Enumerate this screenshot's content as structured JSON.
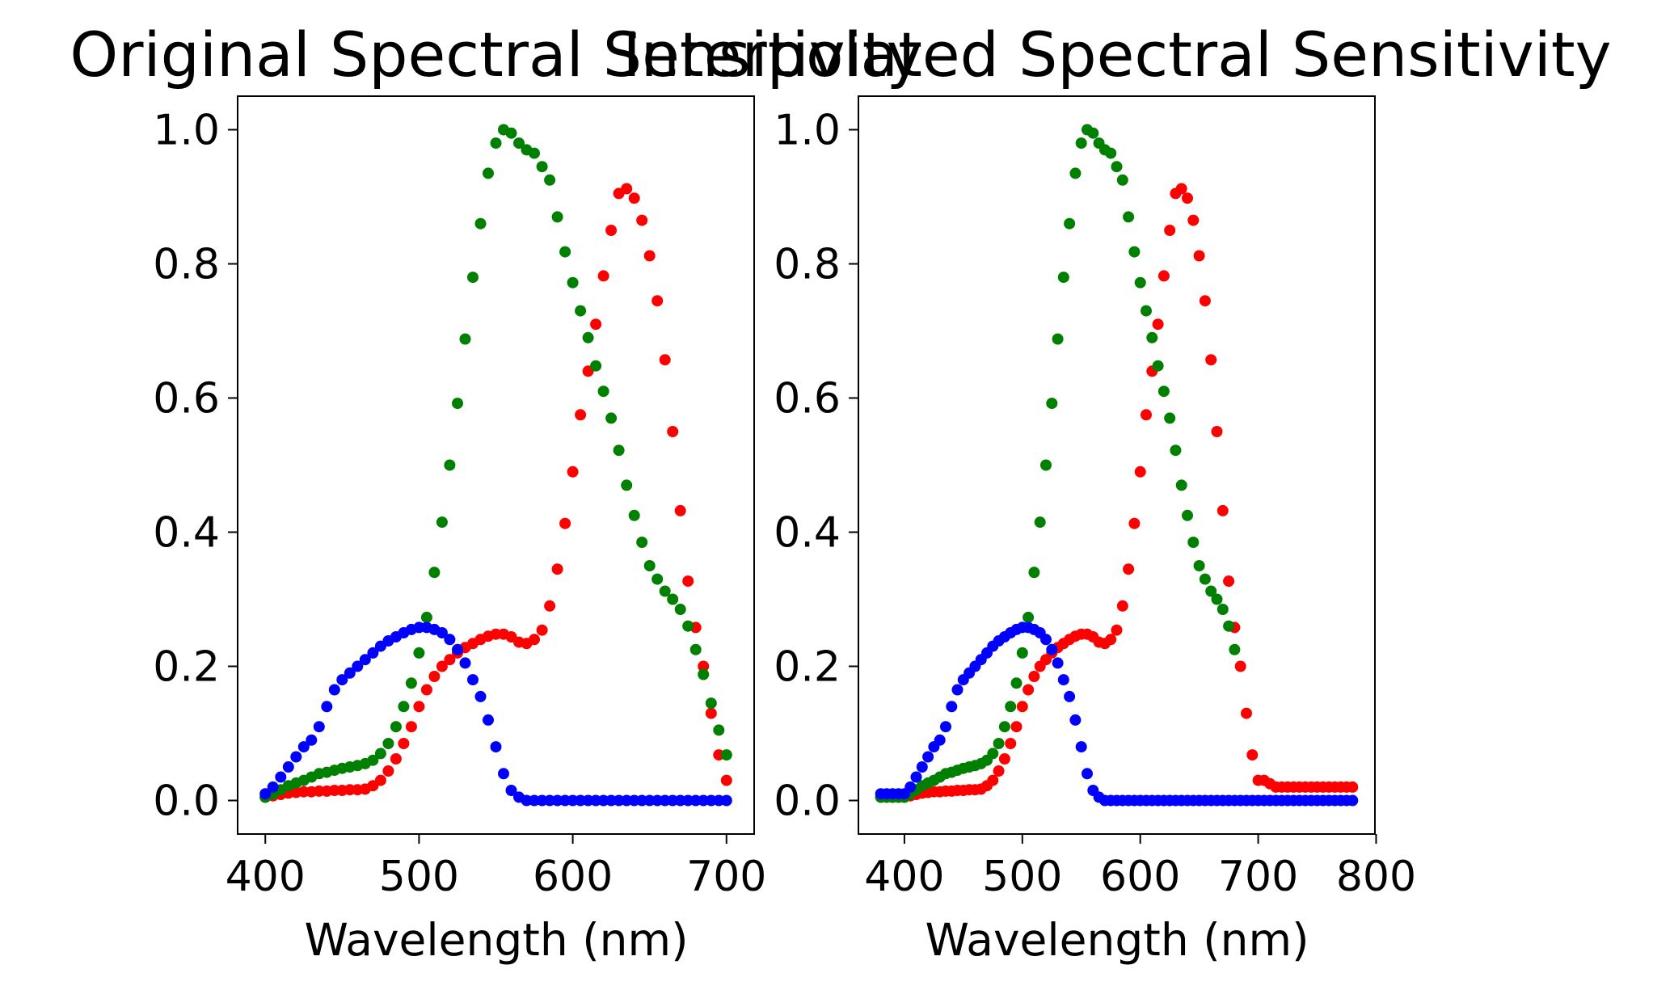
{
  "chart_data": [
    {
      "type": "scatter",
      "title": "Original Spectral Sensitivity",
      "xlabel": "Wavelength (nm)",
      "ylabel": "",
      "xlim": [
        382,
        718
      ],
      "ylim": [
        -0.05,
        1.05
      ],
      "xticks": [
        "400",
        "500",
        "600",
        "700"
      ],
      "yticks": [
        "0.0",
        "0.2",
        "0.4",
        "0.6",
        "0.8",
        "1.0"
      ],
      "grid": false,
      "series": [
        {
          "color": "#ff0000",
          "x": [
            400,
            405,
            410,
            415,
            420,
            425,
            430,
            435,
            440,
            445,
            450,
            455,
            460,
            465,
            470,
            475,
            480,
            485,
            490,
            495,
            500,
            505,
            510,
            515,
            520,
            525,
            530,
            535,
            540,
            545,
            550,
            555,
            560,
            565,
            570,
            575,
            580,
            585,
            590,
            595,
            600,
            605,
            610,
            615,
            620,
            625,
            630,
            635,
            640,
            645,
            650,
            655,
            660,
            665,
            670,
            675,
            680,
            685,
            690,
            695,
            700
          ],
          "y": [
            0.005,
            0.007,
            0.009,
            0.011,
            0.012,
            0.013,
            0.013,
            0.014,
            0.014,
            0.015,
            0.015,
            0.016,
            0.016,
            0.017,
            0.022,
            0.03,
            0.044,
            0.062,
            0.085,
            0.11,
            0.14,
            0.165,
            0.185,
            0.2,
            0.21,
            0.22,
            0.228,
            0.234,
            0.24,
            0.245,
            0.248,
            0.248,
            0.244,
            0.236,
            0.234,
            0.24,
            0.254,
            0.29,
            0.345,
            0.413,
            0.49,
            0.575,
            0.64,
            0.71,
            0.782,
            0.85,
            0.905,
            0.912,
            0.898,
            0.865,
            0.812,
            0.745,
            0.657,
            0.55,
            0.432,
            0.327,
            0.258,
            0.2,
            0.13,
            0.068,
            0.03
          ]
        },
        {
          "color": "#008000",
          "x": [
            400,
            405,
            410,
            415,
            420,
            425,
            430,
            435,
            440,
            445,
            450,
            455,
            460,
            465,
            470,
            475,
            480,
            485,
            490,
            495,
            500,
            505,
            510,
            515,
            520,
            525,
            530,
            535,
            540,
            545,
            550,
            555,
            560,
            565,
            570,
            575,
            580,
            585,
            590,
            595,
            600,
            605,
            610,
            615,
            620,
            625,
            630,
            635,
            640,
            645,
            650,
            655,
            660,
            665,
            670,
            675,
            680,
            685,
            690,
            695,
            700
          ],
          "y": [
            0.005,
            0.01,
            0.016,
            0.022,
            0.026,
            0.03,
            0.035,
            0.04,
            0.042,
            0.045,
            0.048,
            0.05,
            0.052,
            0.055,
            0.06,
            0.07,
            0.085,
            0.11,
            0.14,
            0.175,
            0.22,
            0.273,
            0.34,
            0.415,
            0.5,
            0.592,
            0.688,
            0.78,
            0.86,
            0.935,
            0.98,
            1.0,
            0.995,
            0.98,
            0.97,
            0.965,
            0.945,
            0.925,
            0.87,
            0.818,
            0.772,
            0.73,
            0.69,
            0.648,
            0.61,
            0.57,
            0.522,
            0.47,
            0.425,
            0.385,
            0.35,
            0.33,
            0.312,
            0.3,
            0.285,
            0.26,
            0.225,
            0.188,
            0.145,
            0.105,
            0.068
          ]
        },
        {
          "color": "#0000ff",
          "x": [
            400,
            405,
            410,
            415,
            420,
            425,
            430,
            435,
            440,
            445,
            450,
            455,
            460,
            465,
            470,
            475,
            480,
            485,
            490,
            495,
            500,
            505,
            510,
            515,
            520,
            525,
            530,
            535,
            540,
            545,
            550,
            555,
            560,
            565,
            570,
            575,
            580,
            585,
            590,
            595,
            600,
            605,
            610,
            615,
            620,
            625,
            630,
            635,
            640,
            645,
            650,
            655,
            660,
            665,
            670,
            675,
            680,
            685,
            690,
            695,
            700
          ],
          "y": [
            0.01,
            0.02,
            0.035,
            0.05,
            0.065,
            0.08,
            0.09,
            0.11,
            0.14,
            0.165,
            0.18,
            0.19,
            0.2,
            0.21,
            0.22,
            0.23,
            0.238,
            0.244,
            0.25,
            0.255,
            0.258,
            0.258,
            0.255,
            0.25,
            0.24,
            0.225,
            0.205,
            0.18,
            0.155,
            0.12,
            0.08,
            0.04,
            0.015,
            0.005,
            0,
            0,
            0,
            0,
            0,
            0,
            0,
            0,
            0,
            0,
            0,
            0,
            0,
            0,
            0,
            0,
            0,
            0,
            0,
            0,
            0,
            0,
            0,
            0,
            0,
            0,
            0
          ]
        }
      ]
    },
    {
      "type": "scatter",
      "title": "Interpolated Spectral Sensitivity",
      "xlabel": "Wavelength (nm)",
      "ylabel": "",
      "xlim": [
        361,
        799
      ],
      "ylim": [
        -0.05,
        1.05
      ],
      "xticks": [
        "400",
        "500",
        "600",
        "700",
        "800"
      ],
      "yticks": [
        "0.0",
        "0.2",
        "0.4",
        "0.6",
        "0.8",
        "1.0"
      ],
      "grid": false,
      "series": [
        {
          "color": "#ff0000",
          "x": [
            380,
            385,
            390,
            395,
            400,
            405,
            410,
            415,
            420,
            425,
            430,
            435,
            440,
            445,
            450,
            455,
            460,
            465,
            470,
            475,
            480,
            485,
            490,
            495,
            500,
            505,
            510,
            515,
            520,
            525,
            530,
            535,
            540,
            545,
            550,
            555,
            560,
            565,
            570,
            575,
            580,
            585,
            590,
            595,
            600,
            605,
            610,
            615,
            620,
            625,
            630,
            635,
            640,
            645,
            650,
            655,
            660,
            665,
            670,
            675,
            680,
            685,
            690,
            695,
            700,
            705,
            710,
            715,
            720,
            725,
            730,
            735,
            740,
            745,
            750,
            755,
            760,
            765,
            770,
            775,
            780
          ],
          "y": [
            0.005,
            0.005,
            0.005,
            0.005,
            0.005,
            0.007,
            0.009,
            0.011,
            0.012,
            0.013,
            0.013,
            0.014,
            0.014,
            0.015,
            0.015,
            0.016,
            0.016,
            0.017,
            0.022,
            0.03,
            0.044,
            0.062,
            0.085,
            0.11,
            0.14,
            0.165,
            0.185,
            0.2,
            0.21,
            0.22,
            0.228,
            0.234,
            0.24,
            0.245,
            0.248,
            0.248,
            0.244,
            0.236,
            0.234,
            0.24,
            0.254,
            0.29,
            0.345,
            0.413,
            0.49,
            0.575,
            0.64,
            0.71,
            0.782,
            0.85,
            0.905,
            0.912,
            0.898,
            0.865,
            0.812,
            0.745,
            0.657,
            0.55,
            0.432,
            0.327,
            0.258,
            0.2,
            0.13,
            0.068,
            0.03,
            0.03,
            0.025,
            0.02,
            0.02,
            0.02,
            0.02,
            0.02,
            0.02,
            0.02,
            0.02,
            0.02,
            0.02,
            0.02,
            0.02,
            0.02,
            0.02
          ]
        },
        {
          "color": "#008000",
          "x": [
            380,
            385,
            390,
            395,
            400,
            405,
            410,
            415,
            420,
            425,
            430,
            435,
            440,
            445,
            450,
            455,
            460,
            465,
            470,
            475,
            480,
            485,
            490,
            495,
            500,
            505,
            510,
            515,
            520,
            525,
            530,
            535,
            540,
            545,
            550,
            555,
            560,
            565,
            570,
            575,
            580,
            585,
            590,
            595,
            600,
            605,
            610,
            615,
            620,
            625,
            630,
            635,
            640,
            645,
            650,
            655,
            660,
            665,
            670,
            675,
            680
          ],
          "y": [
            0.005,
            0.005,
            0.005,
            0.005,
            0.005,
            0.01,
            0.016,
            0.022,
            0.026,
            0.03,
            0.035,
            0.04,
            0.042,
            0.045,
            0.048,
            0.05,
            0.052,
            0.055,
            0.06,
            0.07,
            0.085,
            0.11,
            0.14,
            0.175,
            0.22,
            0.273,
            0.34,
            0.415,
            0.5,
            0.592,
            0.688,
            0.78,
            0.86,
            0.935,
            0.98,
            1.0,
            0.995,
            0.98,
            0.97,
            0.965,
            0.945,
            0.925,
            0.87,
            0.818,
            0.772,
            0.73,
            0.69,
            0.648,
            0.61,
            0.57,
            0.522,
            0.47,
            0.425,
            0.385,
            0.35,
            0.33,
            0.312,
            0.3,
            0.285,
            0.26,
            0.225
          ]
        },
        {
          "color": "#0000ff",
          "x": [
            380,
            385,
            390,
            395,
            400,
            405,
            410,
            415,
            420,
            425,
            430,
            435,
            440,
            445,
            450,
            455,
            460,
            465,
            470,
            475,
            480,
            485,
            490,
            495,
            500,
            505,
            510,
            515,
            520,
            525,
            530,
            535,
            540,
            545,
            550,
            555,
            560,
            565,
            570,
            575,
            580,
            585,
            590,
            595,
            600,
            605,
            610,
            615,
            620,
            625,
            630,
            635,
            640,
            645,
            650,
            655,
            660,
            665,
            670,
            675,
            680,
            685,
            690,
            695,
            700,
            705,
            710,
            715,
            720,
            725,
            730,
            735,
            740,
            745,
            750,
            755,
            760,
            765,
            770,
            775,
            780
          ],
          "y": [
            0.01,
            0.01,
            0.01,
            0.01,
            0.01,
            0.02,
            0.035,
            0.05,
            0.065,
            0.08,
            0.09,
            0.11,
            0.14,
            0.165,
            0.18,
            0.19,
            0.2,
            0.21,
            0.22,
            0.23,
            0.238,
            0.244,
            0.25,
            0.255,
            0.258,
            0.258,
            0.255,
            0.25,
            0.24,
            0.225,
            0.205,
            0.18,
            0.155,
            0.12,
            0.08,
            0.04,
            0.015,
            0.005,
            0,
            0,
            0,
            0,
            0,
            0,
            0,
            0,
            0,
            0,
            0,
            0,
            0,
            0,
            0,
            0,
            0,
            0,
            0,
            0,
            0,
            0,
            0,
            0,
            0,
            0,
            0,
            0,
            0,
            0,
            0,
            0,
            0,
            0,
            0,
            0,
            0,
            0,
            0,
            0,
            0,
            0,
            0
          ]
        }
      ]
    }
  ]
}
